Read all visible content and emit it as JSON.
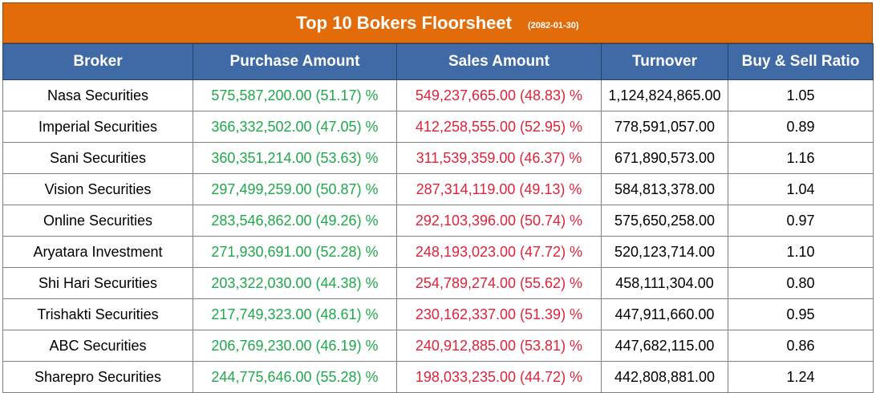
{
  "title": "Top 10 Bokers Floorsheet",
  "date": "(2082-01-30)",
  "colors": {
    "header_orange": "#e36c0a",
    "header_blue": "#3f6aa6",
    "buy": "#1fa84b",
    "sell": "#e0223a"
  },
  "columns": [
    "Broker",
    "Purchase Amount",
    "Sales Amount",
    "Turnover",
    "Buy & Sell Ratio"
  ],
  "rows": [
    [
      "Nasa Securities",
      "575,587,200.00 (51.17) %",
      "549,237,665.00 (48.83) %",
      "1,124,824,865.00",
      "1.05"
    ],
    [
      "Imperial Securities",
      "366,332,502.00 (47.05) %",
      "412,258,555.00 (52.95) %",
      "778,591,057.00",
      "0.89"
    ],
    [
      "Sani Securities",
      "360,351,214.00 (53.63) %",
      "311,539,359.00 (46.37) %",
      "671,890,573.00",
      "1.16"
    ],
    [
      "Vision Securities",
      "297,499,259.00 (50.87) %",
      "287,314,119.00 (49.13) %",
      "584,813,378.00",
      "1.04"
    ],
    [
      "Online Securities",
      "283,546,862.00 (49.26) %",
      "292,103,396.00 (50.74) %",
      "575,650,258.00",
      "0.97"
    ],
    [
      "Aryatara Investment",
      "271,930,691.00 (52.28) %",
      "248,193,023.00 (47.72) %",
      "520,123,714.00",
      "1.10"
    ],
    [
      "Shi Hari Securities",
      "203,322,030.00 (44.38) %",
      "254,789,274.00 (55.62) %",
      "458,111,304.00",
      "0.80"
    ],
    [
      "Trishakti Securities",
      "217,749,323.00 (48.61) %",
      "230,162,337.00 (51.39) %",
      "447,911,660.00",
      "0.95"
    ],
    [
      "ABC Securities",
      "206,769,230.00 (46.19) %",
      "240,912,885.00 (53.81) %",
      "447,682,115.00",
      "0.86"
    ],
    [
      "Sharepro Securities",
      "244,775,646.00 (55.28) %",
      "198,033,235.00 (44.72) %",
      "442,808,881.00",
      "1.24"
    ]
  ]
}
